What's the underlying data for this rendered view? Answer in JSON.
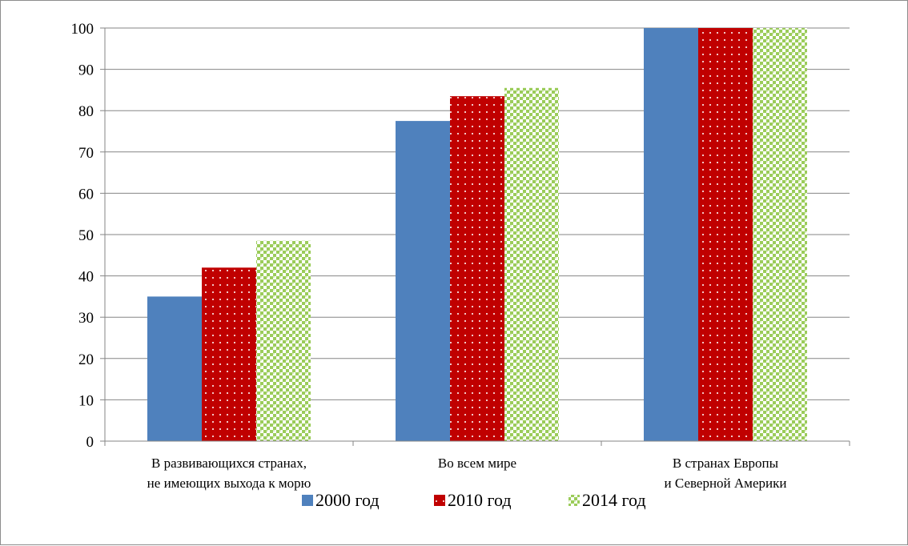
{
  "colors": {
    "series_2000": "#4f81bd",
    "series_2010": "#c00000",
    "series_2014": "#9bcc5a",
    "grid": "#868686",
    "background": "#ffffff"
  },
  "chart_data": {
    "type": "bar",
    "title": "",
    "xlabel": "",
    "ylabel": "",
    "ylim": [
      0,
      100
    ],
    "yticks": [
      0,
      10,
      20,
      30,
      40,
      50,
      60,
      70,
      80,
      90,
      100
    ],
    "grid": true,
    "legend_position": "bottom",
    "categories": [
      [
        "В развивающихся странах,",
        "не имеющих выхода к морю"
      ],
      [
        "Во всем мире"
      ],
      [
        "В странах Европы",
        "и Северной Америки"
      ]
    ],
    "series": [
      {
        "name": "2000 год",
        "pattern": "solid",
        "values": [
          35,
          77.5,
          100
        ]
      },
      {
        "name": "2010 год",
        "pattern": "dots",
        "values": [
          42,
          83.5,
          100
        ]
      },
      {
        "name": "2014 год",
        "pattern": "checker",
        "values": [
          48.5,
          85.5,
          100
        ]
      }
    ]
  }
}
